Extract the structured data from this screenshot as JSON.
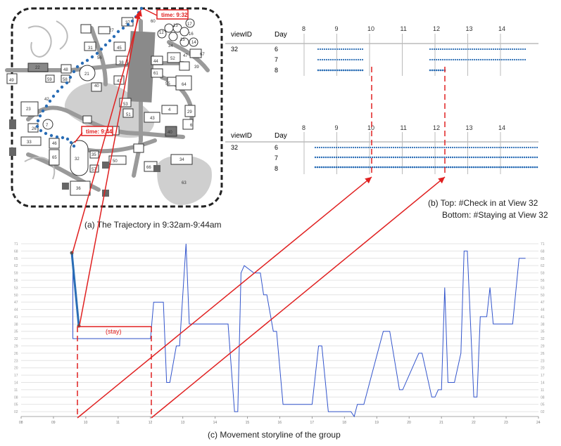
{
  "map": {
    "caption": "(a) The Trajectory in 9:32am-9:44am",
    "time_start": "time: 9:32",
    "time_end": "time: 9:44",
    "building_labels": [
      "37",
      "60",
      "12",
      "13",
      "17",
      "27",
      "16",
      "15",
      "14",
      "34",
      "67",
      "47",
      "31",
      "45",
      "56",
      "39",
      "38",
      "44",
      "52",
      "61",
      "21",
      "48",
      "22",
      "59",
      "58",
      "40",
      "41",
      "55",
      "64",
      "49",
      "23",
      "42",
      "53",
      "4",
      "29",
      "51",
      "6",
      "33",
      "46",
      "65",
      "32",
      "35",
      "50",
      "43",
      "66",
      "34",
      "36",
      "63",
      "26",
      "57",
      "7"
    ]
  },
  "views": {
    "caption_line1": "(b) Top: #Check in at View 32",
    "caption_line2": "Bottom: #Staying at View 32",
    "col_viewid": "viewID",
    "col_day": "Day",
    "hours": [
      "8",
      "9",
      "10",
      "11",
      "12",
      "13",
      "14"
    ],
    "top": {
      "view_id": "32",
      "days": [
        "6",
        "7",
        "8"
      ]
    },
    "bottom": {
      "view_id": "32",
      "days": [
        "6",
        "7",
        "8"
      ]
    }
  },
  "storyline": {
    "caption": "(c) Movement storyline of the group",
    "stay_label": "(stay)",
    "accent_color": "#e02020",
    "line_color": "#3355cc",
    "x_ticks": [
      "08",
      "09",
      "10",
      "11",
      "12",
      "13",
      "14",
      "15",
      "16",
      "17",
      "18",
      "19",
      "20",
      "21",
      "22",
      "23",
      "24"
    ],
    "y_ticks": [
      "71",
      "68",
      "65",
      "62",
      "59",
      "56",
      "53",
      "50",
      "47",
      "44",
      "41",
      "38",
      "35",
      "32",
      "29",
      "26",
      "23",
      "20",
      "17",
      "14",
      "11",
      "08",
      "05",
      "02"
    ]
  },
  "chart_data": {
    "type": "line",
    "series": [
      {
        "x": [
          9.6,
          9.6,
          9.72,
          9.72,
          12.0,
          12.1,
          12.4,
          12.5,
          12.6,
          12.8,
          12.9,
          13.1,
          13.2,
          13.3,
          13.4,
          13.5,
          14.3,
          14.4,
          14.6,
          14.7,
          14.8,
          14.9,
          15.2,
          15.4,
          15.5,
          15.6,
          15.8,
          15.9,
          16.1,
          16.2,
          16.6,
          17.0,
          17.2,
          17.3,
          17.5,
          18.2,
          18.3,
          18.4,
          18.6,
          19.2,
          19.4,
          19.7,
          19.8,
          20.3,
          20.4,
          20.7,
          20.8,
          20.9,
          21.0,
          21.1,
          21.2,
          21.4,
          21.6,
          21.7,
          21.8,
          22.0,
          22.1,
          22.2,
          22.4,
          22.5,
          22.6,
          22.8,
          22.9,
          23.1,
          23.2,
          23.4,
          23.6
        ],
        "y": [
          68,
          32,
          32,
          32,
          32,
          47,
          47,
          14,
          14,
          29,
          29,
          71,
          38,
          38,
          38,
          38,
          38,
          38,
          2,
          2,
          59,
          62,
          59,
          59,
          50,
          50,
          35,
          35,
          5,
          5,
          5,
          5,
          29,
          29,
          2,
          2,
          0,
          5,
          5,
          35,
          35,
          11,
          11,
          26,
          26,
          8,
          8,
          11,
          11,
          53,
          14,
          14,
          26,
          68,
          68,
          8,
          8,
          41,
          41,
          53,
          38,
          38,
          38,
          38,
          38,
          65,
          65
        ]
      }
    ],
    "xlim": [
      8,
      24
    ],
    "ylim": [
      0,
      71
    ],
    "gridlines": true
  }
}
